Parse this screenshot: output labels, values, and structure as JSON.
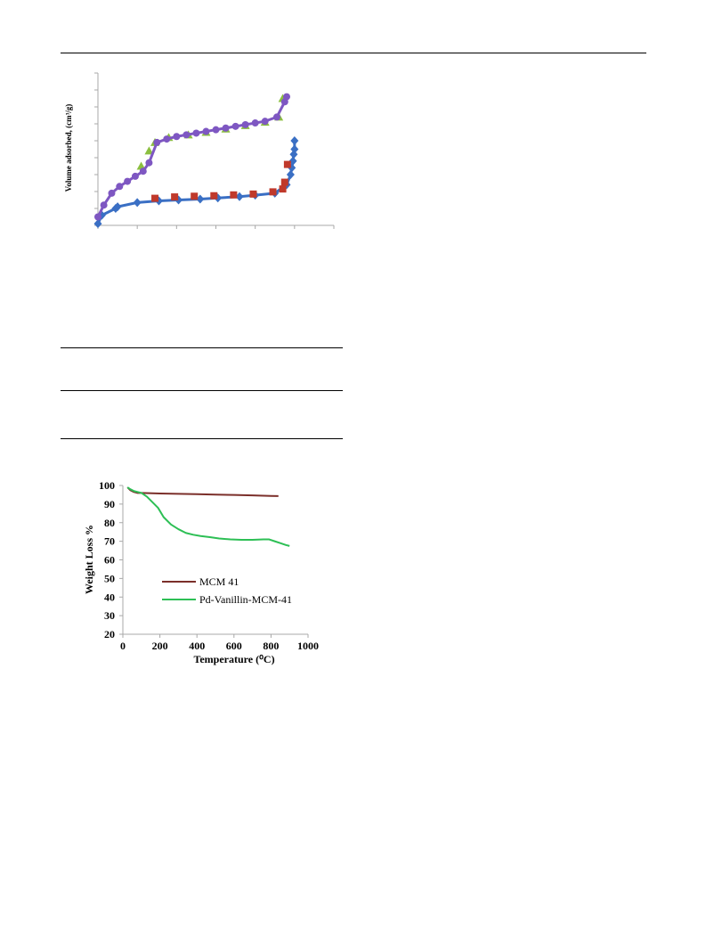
{
  "chart_data": [
    {
      "type": "scatter",
      "title": "",
      "ylabel": "Volume adsorbed, (cm³/g)",
      "xlabel": "",
      "x_tick_labels_printed": false,
      "y_tick_labels_printed": false,
      "x_tick_count": 6,
      "y_tick_count": 9,
      "xlim": [
        0,
        6
      ],
      "ylim": [
        0,
        9
      ],
      "grid": false,
      "legend": "none",
      "series": [
        {
          "color": "#3a6fc4",
          "marker": "diamond",
          "line": true,
          "x": [
            0,
            0.1,
            0.45,
            0.5,
            1.0,
            1.55,
            2.05,
            2.6,
            3.05,
            3.6,
            4.0,
            4.5,
            4.8,
            4.9,
            4.93,
            4.96,
            4.98,
            5.0,
            5.0
          ],
          "y": [
            0.1,
            0.6,
            1.0,
            1.1,
            1.35,
            1.45,
            1.5,
            1.55,
            1.62,
            1.7,
            1.78,
            1.9,
            2.4,
            3.0,
            3.4,
            3.8,
            4.2,
            4.5,
            5.0
          ]
        },
        {
          "color": "#c0392b",
          "marker": "square",
          "line": false,
          "x": [
            1.45,
            1.95,
            2.45,
            2.95,
            3.45,
            3.95,
            4.45,
            4.7,
            4.75,
            4.82
          ],
          "y": [
            1.6,
            1.68,
            1.72,
            1.75,
            1.8,
            1.85,
            1.98,
            2.15,
            2.55,
            3.6
          ]
        },
        {
          "color": "#8bbf3f",
          "marker": "triangle",
          "line": false,
          "x": [
            1.1,
            1.3,
            1.45,
            1.8,
            2.3,
            2.75,
            3.25,
            3.75,
            4.25,
            4.6,
            4.7
          ],
          "y": [
            3.5,
            4.4,
            4.9,
            5.2,
            5.35,
            5.5,
            5.7,
            5.9,
            6.1,
            6.4,
            7.5
          ]
        },
        {
          "color": "#7e57c2",
          "marker": "circle",
          "line": true,
          "x": [
            0,
            0.15,
            0.35,
            0.55,
            0.75,
            0.95,
            1.15,
            1.3,
            1.5,
            1.75,
            2.0,
            2.25,
            2.5,
            2.75,
            3.0,
            3.25,
            3.5,
            3.75,
            4.0,
            4.25,
            4.55,
            4.75,
            4.8
          ],
          "y": [
            0.5,
            1.2,
            1.9,
            2.3,
            2.6,
            2.9,
            3.2,
            3.7,
            4.9,
            5.1,
            5.25,
            5.35,
            5.45,
            5.55,
            5.65,
            5.75,
            5.85,
            5.95,
            6.05,
            6.15,
            6.4,
            7.3,
            7.6
          ]
        }
      ]
    },
    {
      "type": "line",
      "title": "",
      "xlabel": "Temperature (⁰C)",
      "ylabel": "Weight Loss %",
      "xlim": [
        0,
        1000
      ],
      "ylim": [
        20,
        100
      ],
      "x_ticks": [
        0,
        200,
        400,
        600,
        800,
        1000
      ],
      "y_ticks": [
        20,
        30,
        40,
        50,
        60,
        70,
        80,
        90,
        100
      ],
      "grid": false,
      "legend": "center-left",
      "series": [
        {
          "name": "MCM 41",
          "color": "#7b2f2a",
          "x": [
            25,
            40,
            60,
            80,
            100,
            200,
            300,
            400,
            500,
            600,
            700,
            800,
            840
          ],
          "y": [
            99,
            97.5,
            96.5,
            96,
            96,
            95.7,
            95.5,
            95.3,
            95.1,
            94.9,
            94.7,
            94.4,
            94.3
          ]
        },
        {
          "name": "Pd-Vanillin-MCM-41",
          "color": "#2dbf55",
          "x": [
            25,
            40,
            60,
            80,
            100,
            130,
            160,
            190,
            220,
            260,
            300,
            340,
            380,
            420,
            470,
            520,
            580,
            640,
            700,
            760,
            790,
            820,
            850,
            880,
            900
          ],
          "y": [
            99,
            98,
            97,
            96.5,
            96,
            94,
            91,
            88,
            83,
            79,
            76.5,
            74.5,
            73.5,
            72.8,
            72.2,
            71.5,
            71,
            70.8,
            70.8,
            71,
            71,
            70,
            69,
            68,
            67.5
          ]
        }
      ]
    }
  ]
}
